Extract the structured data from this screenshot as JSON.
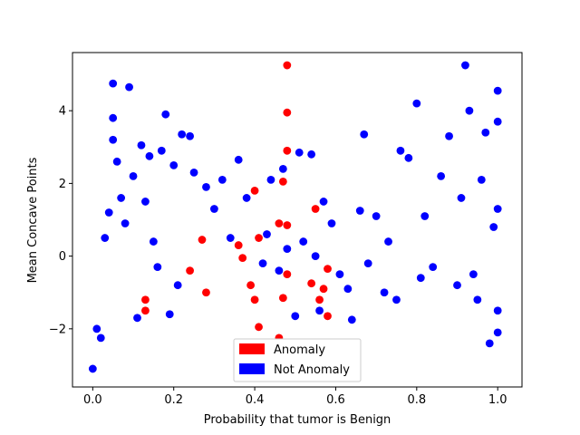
{
  "chart_data": {
    "type": "scatter",
    "xlabel": "Probability that tumor is Benign",
    "ylabel": "Mean Concave Points",
    "xlim": [
      -0.05,
      1.06
    ],
    "ylim": [
      -3.6,
      5.6
    ],
    "x_ticks": [
      0.0,
      0.2,
      0.4,
      0.6,
      0.8,
      1.0
    ],
    "x_tick_labels": [
      "0.0",
      "0.2",
      "0.4",
      "0.6",
      "0.8",
      "1.0"
    ],
    "y_ticks": [
      -2,
      0,
      2,
      4
    ],
    "y_tick_labels": [
      "−2",
      "0",
      "2",
      "4"
    ],
    "grid": false,
    "legend_position": "bottom-center",
    "series": [
      {
        "name": "Not Anomaly",
        "color": "#0000ff",
        "points": [
          [
            0.0,
            -3.1
          ],
          [
            0.01,
            -2.0
          ],
          [
            0.02,
            -2.25
          ],
          [
            0.03,
            0.5
          ],
          [
            0.04,
            1.2
          ],
          [
            0.05,
            4.75
          ],
          [
            0.05,
            3.8
          ],
          [
            0.05,
            3.2
          ],
          [
            0.06,
            2.6
          ],
          [
            0.07,
            1.6
          ],
          [
            0.08,
            0.9
          ],
          [
            0.09,
            4.65
          ],
          [
            0.1,
            2.2
          ],
          [
            0.11,
            -1.7
          ],
          [
            0.12,
            3.05
          ],
          [
            0.13,
            1.5
          ],
          [
            0.14,
            2.75
          ],
          [
            0.15,
            0.4
          ],
          [
            0.16,
            -0.3
          ],
          [
            0.17,
            2.9
          ],
          [
            0.18,
            3.9
          ],
          [
            0.19,
            -1.6
          ],
          [
            0.2,
            2.5
          ],
          [
            0.21,
            -0.8
          ],
          [
            0.22,
            3.35
          ],
          [
            0.24,
            3.3
          ],
          [
            0.25,
            2.3
          ],
          [
            0.28,
            1.9
          ],
          [
            0.3,
            1.3
          ],
          [
            0.32,
            2.1
          ],
          [
            0.34,
            0.5
          ],
          [
            0.36,
            2.65
          ],
          [
            0.38,
            1.6
          ],
          [
            0.42,
            -0.2
          ],
          [
            0.43,
            0.6
          ],
          [
            0.44,
            2.1
          ],
          [
            0.46,
            -0.4
          ],
          [
            0.47,
            2.4
          ],
          [
            0.48,
            0.2
          ],
          [
            0.5,
            -1.65
          ],
          [
            0.51,
            2.85
          ],
          [
            0.52,
            0.4
          ],
          [
            0.54,
            2.8
          ],
          [
            0.55,
            0.0
          ],
          [
            0.56,
            -1.5
          ],
          [
            0.57,
            1.5
          ],
          [
            0.59,
            0.9
          ],
          [
            0.61,
            -0.5
          ],
          [
            0.63,
            -0.9
          ],
          [
            0.64,
            -1.75
          ],
          [
            0.66,
            1.25
          ],
          [
            0.67,
            3.35
          ],
          [
            0.68,
            -0.2
          ],
          [
            0.7,
            1.1
          ],
          [
            0.72,
            -1.0
          ],
          [
            0.73,
            0.4
          ],
          [
            0.75,
            -1.2
          ],
          [
            0.76,
            2.9
          ],
          [
            0.78,
            2.7
          ],
          [
            0.8,
            4.2
          ],
          [
            0.81,
            -0.6
          ],
          [
            0.82,
            1.1
          ],
          [
            0.84,
            -0.3
          ],
          [
            0.86,
            2.2
          ],
          [
            0.88,
            3.3
          ],
          [
            0.9,
            -0.8
          ],
          [
            0.91,
            1.6
          ],
          [
            0.92,
            5.25
          ],
          [
            0.93,
            4.0
          ],
          [
            0.94,
            -0.5
          ],
          [
            0.95,
            -1.2
          ],
          [
            0.96,
            2.1
          ],
          [
            0.97,
            3.4
          ],
          [
            0.98,
            -2.4
          ],
          [
            0.99,
            0.8
          ],
          [
            1.0,
            4.55
          ],
          [
            1.0,
            -2.1
          ],
          [
            1.0,
            3.7
          ],
          [
            1.0,
            -1.5
          ],
          [
            1.0,
            1.3
          ]
        ]
      },
      {
        "name": "Anomaly",
        "color": "#ff0000",
        "points": [
          [
            0.13,
            -1.2
          ],
          [
            0.13,
            -1.5
          ],
          [
            0.24,
            -0.4
          ],
          [
            0.27,
            0.45
          ],
          [
            0.28,
            -1.0
          ],
          [
            0.36,
            0.3
          ],
          [
            0.37,
            -0.05
          ],
          [
            0.39,
            -0.8
          ],
          [
            0.4,
            1.8
          ],
          [
            0.4,
            -1.2
          ],
          [
            0.41,
            -1.95
          ],
          [
            0.41,
            0.5
          ],
          [
            0.46,
            -2.25
          ],
          [
            0.46,
            0.9
          ],
          [
            0.47,
            2.05
          ],
          [
            0.47,
            -1.15
          ],
          [
            0.48,
            5.25
          ],
          [
            0.48,
            3.95
          ],
          [
            0.48,
            2.9
          ],
          [
            0.48,
            0.85
          ],
          [
            0.48,
            -0.5
          ],
          [
            0.54,
            -0.75
          ],
          [
            0.55,
            1.3
          ],
          [
            0.56,
            -1.2
          ],
          [
            0.57,
            -0.9
          ],
          [
            0.58,
            -1.65
          ],
          [
            0.58,
            -0.35
          ]
        ]
      }
    ]
  }
}
